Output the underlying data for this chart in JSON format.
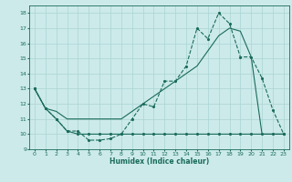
{
  "xlabel": "Humidex (Indice chaleur)",
  "bg_color": "#cceaea",
  "line_color": "#1a6b5a",
  "grid_color": "#aad4d4",
  "xlim": [
    -0.5,
    23.5
  ],
  "ylim": [
    9,
    18.5
  ],
  "xticks": [
    0,
    1,
    2,
    3,
    4,
    5,
    6,
    7,
    8,
    9,
    10,
    11,
    12,
    13,
    14,
    15,
    16,
    17,
    18,
    19,
    20,
    21,
    22,
    23
  ],
  "yticks": [
    9,
    10,
    11,
    12,
    13,
    14,
    15,
    16,
    17,
    18
  ],
  "line1_x": [
    0,
    1,
    2,
    3,
    4,
    5,
    6,
    7,
    8,
    9,
    10,
    11,
    12,
    13,
    14,
    15,
    16,
    17,
    18,
    19,
    20,
    21,
    22,
    23
  ],
  "line1_y": [
    13,
    11.7,
    11.0,
    10.2,
    10.2,
    9.6,
    9.6,
    9.7,
    10.0,
    11.0,
    12.0,
    11.8,
    13.5,
    13.5,
    14.5,
    17.0,
    16.3,
    18.0,
    17.3,
    15.1,
    15.1,
    13.7,
    11.6,
    10.0
  ],
  "line2_x": [
    0,
    1,
    2,
    3,
    4,
    5,
    6,
    7,
    8,
    9,
    10,
    11,
    12,
    13,
    14,
    15,
    16,
    17,
    18,
    19,
    20,
    21,
    22,
    23
  ],
  "line2_y": [
    13,
    11.7,
    11.0,
    10.2,
    10.0,
    10.0,
    10.0,
    10.0,
    10.0,
    10.0,
    10.0,
    10.0,
    10.0,
    10.0,
    10.0,
    10.0,
    10.0,
    10.0,
    10.0,
    10.0,
    10.0,
    10.0,
    10.0,
    10.0
  ],
  "line3_x": [
    0,
    1,
    2,
    3,
    4,
    5,
    6,
    7,
    8,
    9,
    10,
    11,
    12,
    13,
    14,
    15,
    16,
    17,
    18,
    19,
    20,
    21,
    22,
    23
  ],
  "line3_y": [
    13,
    11.7,
    11.5,
    11.0,
    11.0,
    11.0,
    11.0,
    11.0,
    11.0,
    11.5,
    12.0,
    12.5,
    13.0,
    13.5,
    14.0,
    14.5,
    15.5,
    16.5,
    17.0,
    16.8,
    15.1,
    10.0,
    10.0,
    10.0
  ]
}
